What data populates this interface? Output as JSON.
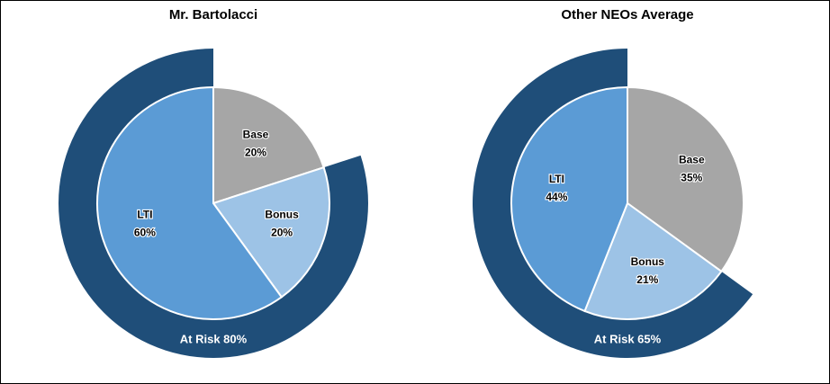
{
  "colors": {
    "base": "#a6a6a6",
    "bonus": "#9dc3e6",
    "lti": "#5b9bd5",
    "at_risk": "#1f4e79",
    "slice_border": "#ffffff"
  },
  "chart_data": [
    {
      "type": "pie",
      "title": "Mr. Bartolacci",
      "slices": [
        {
          "label": "Base",
          "value": 20,
          "display": "20%"
        },
        {
          "label": "Bonus",
          "value": 20,
          "display": "20%"
        },
        {
          "label": "LTI",
          "value": 60,
          "display": "60%"
        }
      ],
      "at_risk": {
        "label": "At Risk 80%",
        "value": 80
      }
    },
    {
      "type": "pie",
      "title": "Other NEOs Average",
      "slices": [
        {
          "label": "Base",
          "value": 35,
          "display": "35%"
        },
        {
          "label": "Bonus",
          "value": 21,
          "display": "21%"
        },
        {
          "label": "LTI",
          "value": 44,
          "display": "44%"
        }
      ],
      "at_risk": {
        "label": "At Risk 65%",
        "value": 65
      }
    }
  ]
}
